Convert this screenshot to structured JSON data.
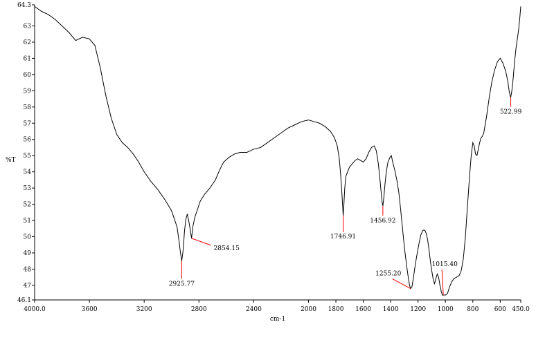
{
  "chart_data": {
    "type": "line",
    "title": "",
    "xlabel": "cm-1",
    "ylabel": "%T",
    "xlim": [
      4000.0,
      450.0
    ],
    "ylim": [
      46.1,
      64.3
    ],
    "x_reversed": true,
    "grid": false,
    "legend": "none",
    "x_ticks": [
      4000.0,
      3600,
      3200,
      2800,
      2400,
      2000,
      1800,
      1600,
      1400,
      1200,
      1000,
      800,
      600,
      450.0
    ],
    "x_tick_labels": [
      "4000.0",
      "3600",
      "3200",
      "2800",
      "2400",
      "2000",
      "1800",
      "1600",
      "1400",
      "1200",
      "1000",
      "800",
      "600",
      "450.0"
    ],
    "y_ticks": [
      46.1,
      47,
      48,
      49,
      50,
      51,
      52,
      53,
      54,
      55,
      56,
      57,
      58,
      59,
      60,
      61,
      62,
      63,
      64.3
    ],
    "y_tick_labels": [
      "46.1",
      "47",
      "48",
      "49",
      "50",
      "51",
      "52",
      "53",
      "54",
      "55",
      "56",
      "57",
      "58",
      "59",
      "60",
      "61",
      "62",
      "63",
      "64.3"
    ],
    "series": [
      {
        "color": "#000000",
        "points": [
          [
            4000,
            64.2
          ],
          [
            3950,
            63.9
          ],
          [
            3900,
            63.7
          ],
          [
            3850,
            63.4
          ],
          [
            3800,
            63.0
          ],
          [
            3750,
            62.6
          ],
          [
            3700,
            62.1
          ],
          [
            3650,
            62.3
          ],
          [
            3600,
            62.2
          ],
          [
            3560,
            61.8
          ],
          [
            3520,
            60.4
          ],
          [
            3480,
            58.7
          ],
          [
            3440,
            57.3
          ],
          [
            3400,
            56.3
          ],
          [
            3360,
            55.8
          ],
          [
            3320,
            55.5
          ],
          [
            3280,
            55.1
          ],
          [
            3240,
            54.6
          ],
          [
            3200,
            54.0
          ],
          [
            3150,
            53.4
          ],
          [
            3100,
            52.9
          ],
          [
            3050,
            52.3
          ],
          [
            3000,
            51.6
          ],
          [
            2980,
            51.1
          ],
          [
            2960,
            50.6
          ],
          [
            2945,
            49.7
          ],
          [
            2935,
            49.0
          ],
          [
            2925.77,
            48.5
          ],
          [
            2915,
            49.2
          ],
          [
            2905,
            50.4
          ],
          [
            2895,
            51.1
          ],
          [
            2885,
            51.4
          ],
          [
            2875,
            51.0
          ],
          [
            2865,
            50.5
          ],
          [
            2854.15,
            49.9
          ],
          [
            2845,
            50.6
          ],
          [
            2830,
            51.2
          ],
          [
            2810,
            51.7
          ],
          [
            2790,
            52.2
          ],
          [
            2760,
            52.6
          ],
          [
            2720,
            53.0
          ],
          [
            2680,
            53.5
          ],
          [
            2650,
            54.1
          ],
          [
            2620,
            54.6
          ],
          [
            2580,
            54.9
          ],
          [
            2540,
            55.1
          ],
          [
            2500,
            55.2
          ],
          [
            2450,
            55.2
          ],
          [
            2400,
            55.4
          ],
          [
            2350,
            55.5
          ],
          [
            2300,
            55.8
          ],
          [
            2250,
            56.1
          ],
          [
            2200,
            56.4
          ],
          [
            2150,
            56.7
          ],
          [
            2100,
            56.9
          ],
          [
            2050,
            57.1
          ],
          [
            2000,
            57.2
          ],
          [
            1960,
            57.1
          ],
          [
            1920,
            57.0
          ],
          [
            1880,
            56.8
          ],
          [
            1840,
            56.5
          ],
          [
            1810,
            56.1
          ],
          [
            1790,
            55.6
          ],
          [
            1775,
            54.8
          ],
          [
            1765,
            53.8
          ],
          [
            1757,
            52.8
          ],
          [
            1750,
            51.8
          ],
          [
            1746.91,
            51.3
          ],
          [
            1742,
            51.9
          ],
          [
            1736,
            52.9
          ],
          [
            1728,
            53.7
          ],
          [
            1715,
            54.0
          ],
          [
            1700,
            54.3
          ],
          [
            1680,
            54.5
          ],
          [
            1660,
            54.7
          ],
          [
            1640,
            54.8
          ],
          [
            1620,
            54.7
          ],
          [
            1600,
            54.6
          ],
          [
            1580,
            54.8
          ],
          [
            1560,
            55.2
          ],
          [
            1540,
            55.5
          ],
          [
            1520,
            55.6
          ],
          [
            1505,
            55.3
          ],
          [
            1490,
            54.5
          ],
          [
            1478,
            53.5
          ],
          [
            1468,
            52.6
          ],
          [
            1462,
            52.1
          ],
          [
            1456.92,
            51.9
          ],
          [
            1450,
            52.4
          ],
          [
            1442,
            53.2
          ],
          [
            1432,
            54.0
          ],
          [
            1420,
            54.6
          ],
          [
            1405,
            54.9
          ],
          [
            1395,
            55.0
          ],
          [
            1385,
            54.6
          ],
          [
            1370,
            54.1
          ],
          [
            1355,
            53.5
          ],
          [
            1340,
            52.7
          ],
          [
            1325,
            51.5
          ],
          [
            1310,
            50.2
          ],
          [
            1295,
            49.0
          ],
          [
            1280,
            48.0
          ],
          [
            1270,
            47.4
          ],
          [
            1262,
            47.0
          ],
          [
            1255.2,
            46.8
          ],
          [
            1245,
            46.9
          ],
          [
            1235,
            47.4
          ],
          [
            1225,
            48.0
          ],
          [
            1210,
            48.8
          ],
          [
            1195,
            49.5
          ],
          [
            1180,
            50.1
          ],
          [
            1165,
            50.4
          ],
          [
            1150,
            50.4
          ],
          [
            1140,
            50.2
          ],
          [
            1130,
            49.8
          ],
          [
            1120,
            49.2
          ],
          [
            1110,
            48.5
          ],
          [
            1100,
            47.9
          ],
          [
            1090,
            47.4
          ],
          [
            1080,
            47.1
          ],
          [
            1070,
            47.4
          ],
          [
            1060,
            47.7
          ],
          [
            1050,
            47.5
          ],
          [
            1040,
            47.0
          ],
          [
            1030,
            46.6
          ],
          [
            1022,
            46.4
          ],
          [
            1015.4,
            46.4
          ],
          [
            1000,
            46.4
          ],
          [
            985,
            46.5
          ],
          [
            970,
            46.9
          ],
          [
            955,
            47.2
          ],
          [
            940,
            47.4
          ],
          [
            920,
            47.5
          ],
          [
            900,
            47.6
          ],
          [
            885,
            47.9
          ],
          [
            870,
            48.6
          ],
          [
            855,
            49.9
          ],
          [
            840,
            51.8
          ],
          [
            825,
            53.6
          ],
          [
            812,
            55.0
          ],
          [
            800,
            55.8
          ],
          [
            790,
            55.6
          ],
          [
            780,
            55.1
          ],
          [
            770,
            55.0
          ],
          [
            760,
            55.4
          ],
          [
            750,
            55.8
          ],
          [
            740,
            56.1
          ],
          [
            730,
            56.2
          ],
          [
            720,
            56.4
          ],
          [
            700,
            57.4
          ],
          [
            680,
            58.6
          ],
          [
            660,
            59.6
          ],
          [
            640,
            60.3
          ],
          [
            620,
            60.8
          ],
          [
            600,
            61.0
          ],
          [
            580,
            60.7
          ],
          [
            560,
            60.2
          ],
          [
            545,
            59.6
          ],
          [
            535,
            59.0
          ],
          [
            528,
            58.7
          ],
          [
            522.99,
            58.6
          ],
          [
            515,
            59.0
          ],
          [
            505,
            59.8
          ],
          [
            495,
            60.8
          ],
          [
            485,
            61.6
          ],
          [
            475,
            62.2
          ],
          [
            465,
            62.8
          ],
          [
            457,
            63.5
          ],
          [
            450,
            64.2
          ]
        ]
      }
    ],
    "peak_labels": [
      {
        "x": 2925.77,
        "y": 48.5,
        "label": "2925.77"
      },
      {
        "x": 2854.15,
        "y": 49.9,
        "label": "2854.15"
      },
      {
        "x": 1746.91,
        "y": 51.3,
        "label": "1746.91"
      },
      {
        "x": 1456.92,
        "y": 51.9,
        "label": "1456.92"
      },
      {
        "x": 1255.2,
        "y": 46.8,
        "label": "1255.20"
      },
      {
        "x": 1015.4,
        "y": 46.4,
        "label": "1015.40"
      },
      {
        "x": 522.99,
        "y": 58.6,
        "label": "522.99"
      }
    ],
    "peak_color": "#ff0000"
  }
}
